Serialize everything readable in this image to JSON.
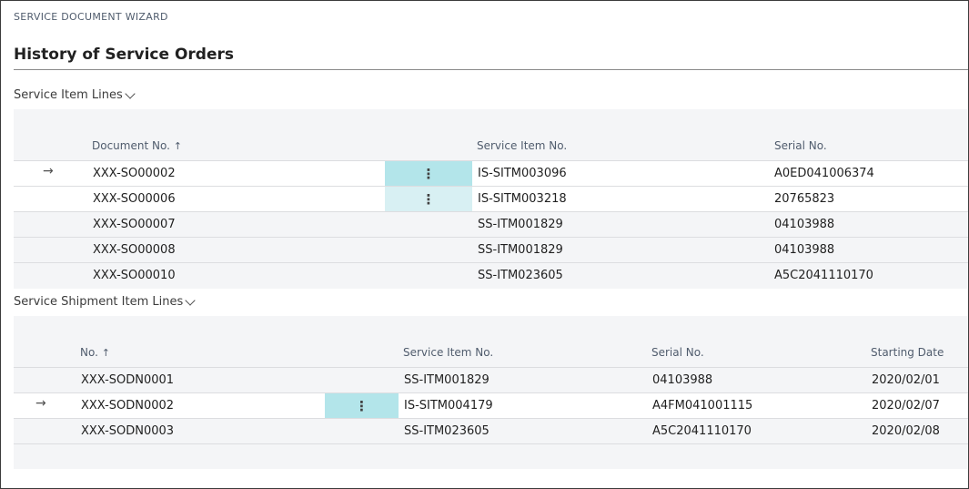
{
  "wizard_caption": "SERVICE DOCUMENT WIZARD",
  "page_title": "History of Service Orders",
  "icons": {
    "arrow": "→",
    "dots": "⋮",
    "sort": "↑"
  },
  "item_lines": {
    "label": "Service Item Lines",
    "columns": {
      "document_no": "Document No.",
      "service_item_no": "Service Item No.",
      "serial_no": "Serial No."
    },
    "rows": [
      {
        "document_no": "XXX-SO00002",
        "service_item_no": "IS-SITM003096",
        "serial_no": "A0ED041006374"
      },
      {
        "document_no": "XXX-SO00006",
        "service_item_no": "IS-SITM003218",
        "serial_no": "20765823"
      },
      {
        "document_no": "XXX-SO00007",
        "service_item_no": "SS-ITM001829",
        "serial_no": "04103988"
      },
      {
        "document_no": "XXX-SO00008",
        "service_item_no": "SS-ITM001829",
        "serial_no": "04103988"
      },
      {
        "document_no": "XXX-SO00010",
        "service_item_no": "SS-ITM023605",
        "serial_no": "A5C2041110170"
      }
    ]
  },
  "shipment_lines": {
    "label": "Service Shipment Item Lines",
    "columns": {
      "no": "No.",
      "service_item_no": "Service Item No.",
      "serial_no": "Serial No.",
      "starting_date": "Starting Date"
    },
    "rows": [
      {
        "no": "XXX-SODN0001",
        "service_item_no": "SS-ITM001829",
        "serial_no": "04103988",
        "starting_date": "2020/02/01"
      },
      {
        "no": "XXX-SODN0002",
        "service_item_no": "IS-SITM004179",
        "serial_no": "A4FM041001115",
        "starting_date": "2020/02/07"
      },
      {
        "no": "XXX-SODN0003",
        "service_item_no": "SS-ITM023605",
        "serial_no": "A5C2041110170",
        "starting_date": "2020/02/08"
      }
    ]
  }
}
